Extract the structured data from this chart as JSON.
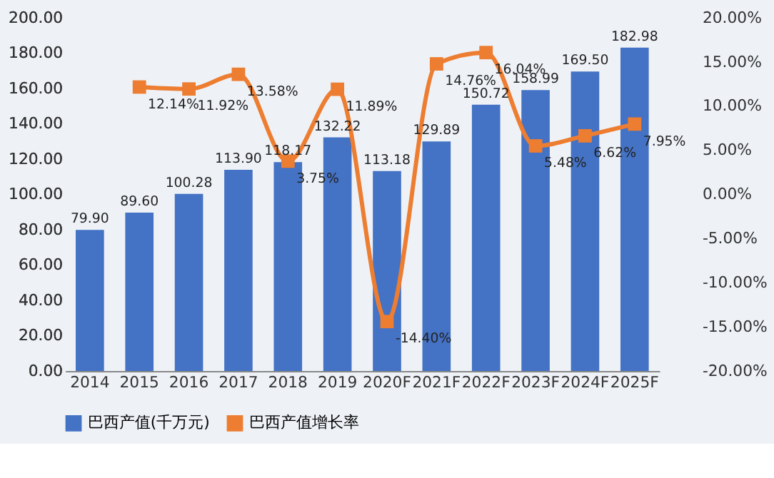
{
  "chart_data": {
    "type": "bar",
    "categories": [
      "2014",
      "2015",
      "2016",
      "2017",
      "2018",
      "2019",
      "2020F",
      "2021F",
      "2022F",
      "2023F",
      "2024F",
      "2025F"
    ],
    "series": [
      {
        "name": "巴西产值(千万元)",
        "type": "bar",
        "color": "#4472c4",
        "values": [
          79.9,
          89.6,
          100.28,
          113.9,
          118.17,
          132.22,
          113.18,
          129.89,
          150.72,
          158.99,
          169.5,
          182.98
        ],
        "value_labels": [
          "79.90",
          "89.60",
          "100.28",
          "113.90",
          "118.17",
          "132.22",
          "113.18",
          "129.89",
          "150.72",
          "158.99",
          "169.50",
          "182.98"
        ]
      },
      {
        "name": "巴西产值增长率",
        "type": "line",
        "axis": "y2",
        "color": "#ed7d31",
        "marker": "square",
        "line_style": "solid",
        "values": [
          null,
          12.14,
          11.92,
          13.58,
          3.75,
          11.89,
          -14.4,
          14.76,
          16.04,
          5.48,
          6.62,
          7.95
        ],
        "value_labels": [
          null,
          "12.14%",
          "11.92%",
          "13.58%",
          "3.75%",
          "11.89%",
          "-14.40%",
          "14.76%",
          "16.04%",
          "5.48%",
          "6.62%",
          "7.95%"
        ]
      }
    ],
    "ylim": [
      0,
      200
    ],
    "yticks": [
      {
        "value": 0,
        "label": "0.00"
      },
      {
        "value": 20,
        "label": "20.00"
      },
      {
        "value": 40,
        "label": "40.00"
      },
      {
        "value": 60,
        "label": "60.00"
      },
      {
        "value": 80,
        "label": "80.00"
      },
      {
        "value": 100,
        "label": "100.00"
      },
      {
        "value": 120,
        "label": "120.00"
      },
      {
        "value": 140,
        "label": "140.00"
      },
      {
        "value": 160,
        "label": "160.00"
      },
      {
        "value": 180,
        "label": "180.00"
      },
      {
        "value": 200,
        "label": "200.00"
      }
    ],
    "y2lim": [
      -20,
      20
    ],
    "y2ticks": [
      {
        "value": -20,
        "label": "-20.00%"
      },
      {
        "value": -15,
        "label": "-15.00%"
      },
      {
        "value": -10,
        "label": "-10.00%"
      },
      {
        "value": -5,
        "label": "-5.00%"
      },
      {
        "value": 0,
        "label": "0.00%"
      },
      {
        "value": 5,
        "label": "5.00%"
      },
      {
        "value": 10,
        "label": "10.00%"
      },
      {
        "value": 15,
        "label": "15.00%"
      },
      {
        "value": 20,
        "label": "20.00%"
      }
    ],
    "grid": false,
    "legend": "bottom"
  }
}
